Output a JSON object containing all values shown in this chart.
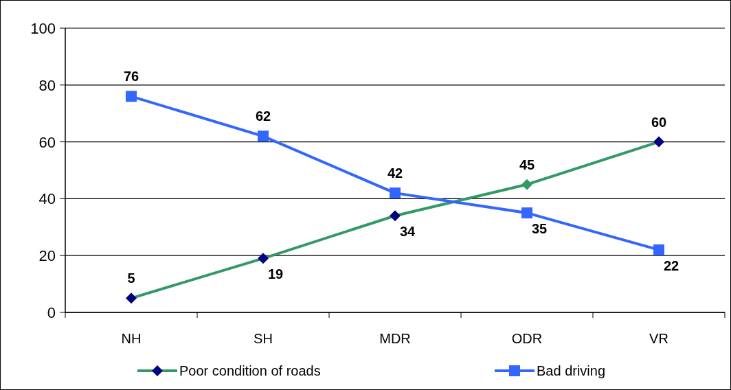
{
  "chart_data": {
    "type": "line",
    "categories": [
      "NH",
      "SH",
      "MDR",
      "ODR",
      "VR"
    ],
    "series": [
      {
        "name": "Poor condition of roads",
        "color": "#339966",
        "colors": [
          "#000080",
          "#000080",
          "#000080",
          "#339966",
          "#000080"
        ],
        "marker": "diamond",
        "values": [
          5,
          19,
          34,
          45,
          60
        ]
      },
      {
        "name": "Bad driving",
        "color": "#3366ff",
        "marker": "square",
        "values": [
          76,
          62,
          42,
          35,
          22
        ]
      }
    ],
    "ylim": [
      0,
      100
    ],
    "yticks": [
      0,
      20,
      40,
      60,
      80,
      100
    ],
    "grid": "y",
    "legend": "bottom",
    "data_labels": true
  }
}
